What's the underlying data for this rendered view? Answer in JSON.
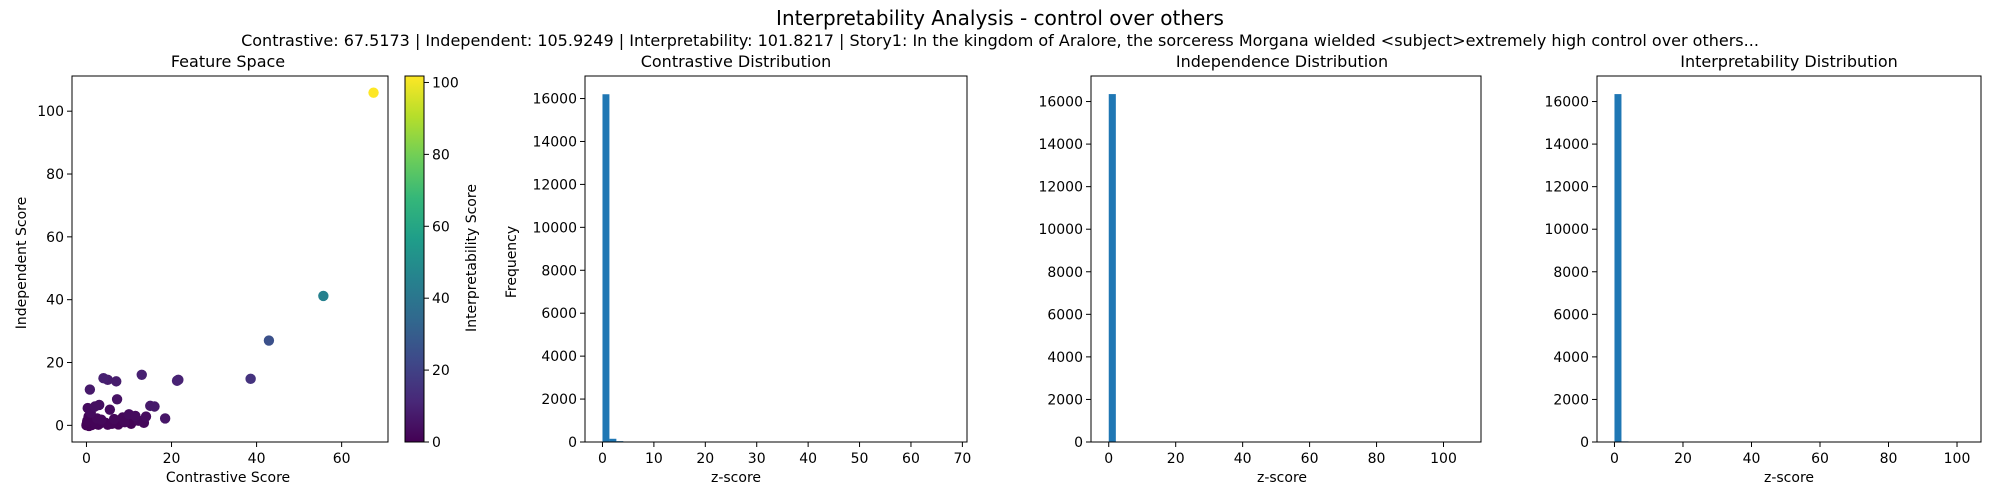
{
  "figure": {
    "title": "Interpretability Analysis - control over others",
    "subtitle": "Contrastive: 67.5173 | Independent: 105.9249 | Interpretability: 101.8217 | Story1: In the kingdom of Aralore, the sorceress Morgana wielded <subject>extremely high control over others..."
  },
  "colors": {
    "bar": "#1f77b4",
    "viridis": [
      "#440154",
      "#482878",
      "#3e4989",
      "#31688e",
      "#26828e",
      "#1f9e89",
      "#35b779",
      "#6ece58",
      "#b5de2b",
      "#fde725"
    ]
  },
  "chart_data": [
    {
      "type": "scatter",
      "title": "Feature Space",
      "xlabel": "Contrastive Score",
      "ylabel": "Independent Score",
      "xlim": [
        -3.4,
        70.9
      ],
      "ylim": [
        -5.3,
        111.2
      ],
      "xticks": [
        0,
        20,
        40,
        60
      ],
      "yticks": [
        0,
        20,
        40,
        60,
        80,
        100
      ],
      "colorbar": {
        "label": "Interpretability Score",
        "range": [
          0,
          101.8
        ],
        "ticks": [
          0,
          20,
          40,
          60,
          80,
          100
        ],
        "colormap": "viridis"
      },
      "points": [
        {
          "x": 67.5,
          "y": 105.9,
          "c": 101.8
        },
        {
          "x": 55.7,
          "y": 41.2,
          "c": 45
        },
        {
          "x": 42.9,
          "y": 27.0,
          "c": 25
        },
        {
          "x": 38.6,
          "y": 14.8,
          "c": 15
        },
        {
          "x": 21.6,
          "y": 14.5,
          "c": 10
        },
        {
          "x": 21.3,
          "y": 14.2,
          "c": 10
        },
        {
          "x": 13.0,
          "y": 16.1,
          "c": 9
        },
        {
          "x": 15.0,
          "y": 6.2,
          "c": 7
        },
        {
          "x": 16.0,
          "y": 6.0,
          "c": 7
        },
        {
          "x": 18.5,
          "y": 2.2,
          "c": 6
        },
        {
          "x": 4.0,
          "y": 15.0,
          "c": 9
        },
        {
          "x": 5.0,
          "y": 14.5,
          "c": 8
        },
        {
          "x": 7.0,
          "y": 14.0,
          "c": 8
        },
        {
          "x": 0.8,
          "y": 11.4,
          "c": 7
        },
        {
          "x": 7.2,
          "y": 8.3,
          "c": 5
        },
        {
          "x": 3.0,
          "y": 6.5,
          "c": 4
        },
        {
          "x": 2.0,
          "y": 6.0,
          "c": 4
        },
        {
          "x": 0.3,
          "y": 5.5,
          "c": 3
        },
        {
          "x": 5.5,
          "y": 5.0,
          "c": 3
        },
        {
          "x": 1.0,
          "y": 4.0,
          "c": 3
        },
        {
          "x": 10.0,
          "y": 3.5,
          "c": 3
        },
        {
          "x": 11.5,
          "y": 3.0,
          "c": 3
        },
        {
          "x": 14.0,
          "y": 2.8,
          "c": 3
        },
        {
          "x": 8.5,
          "y": 2.5,
          "c": 2
        },
        {
          "x": 6.5,
          "y": 2.0,
          "c": 2
        },
        {
          "x": 12.2,
          "y": 1.5,
          "c": 2
        },
        {
          "x": 2.5,
          "y": 2.2,
          "c": 2
        },
        {
          "x": 3.5,
          "y": 1.8,
          "c": 2
        },
        {
          "x": 9.0,
          "y": 1.0,
          "c": 2
        },
        {
          "x": 13.5,
          "y": 0.8,
          "c": 2
        },
        {
          "x": 0.5,
          "y": 2.8,
          "c": 1
        },
        {
          "x": 1.5,
          "y": 1.2,
          "c": 1
        },
        {
          "x": 0.2,
          "y": 1.5,
          "c": 1
        },
        {
          "x": 4.5,
          "y": 0.8,
          "c": 1
        },
        {
          "x": 6.0,
          "y": 0.5,
          "c": 1
        },
        {
          "x": 2.2,
          "y": 0.5,
          "c": 1
        },
        {
          "x": 0.1,
          "y": 0.6,
          "c": 0.5
        },
        {
          "x": 0.4,
          "y": 0.2,
          "c": 0.5
        },
        {
          "x": 0.8,
          "y": 0.3,
          "c": 0.5
        },
        {
          "x": 1.2,
          "y": 0.1,
          "c": 0.5
        },
        {
          "x": 1.8,
          "y": 0.4,
          "c": 0.5
        },
        {
          "x": 0.0,
          "y": 0.0,
          "c": 0.3
        },
        {
          "x": 0.3,
          "y": 0.9,
          "c": 0.5
        },
        {
          "x": 0.7,
          "y": 1.1,
          "c": 0.5
        },
        {
          "x": 2.8,
          "y": 0.2,
          "c": 0.5
        },
        {
          "x": 3.2,
          "y": 0.6,
          "c": 0.5
        },
        {
          "x": 5.0,
          "y": 0.2,
          "c": 0.5
        },
        {
          "x": 7.5,
          "y": 0.3,
          "c": 0.5
        },
        {
          "x": 10.5,
          "y": 0.5,
          "c": 0.7
        },
        {
          "x": 0.6,
          "y": -0.2,
          "c": 0.3
        }
      ]
    },
    {
      "type": "bar",
      "title": "Contrastive Distribution",
      "xlabel": "z-score",
      "ylabel": "Frequency",
      "xlim": [
        -3.4,
        70.9
      ],
      "ylim": [
        0,
        17050
      ],
      "xticks": [
        0,
        10,
        20,
        30,
        40,
        50,
        60,
        70
      ],
      "yticks": [
        0,
        2000,
        4000,
        6000,
        8000,
        10000,
        12000,
        14000,
        16000
      ],
      "bin_width": 1.35,
      "bins": [
        {
          "x": 0,
          "count": 16200
        },
        {
          "x": 1.35,
          "count": 150
        },
        {
          "x": 2.7,
          "count": 40
        },
        {
          "x": 4.05,
          "count": 12
        }
      ]
    },
    {
      "type": "bar",
      "title": "Independence Distribution",
      "xlabel": "z-score",
      "ylabel": "",
      "xlim": [
        -5.3,
        111.2
      ],
      "ylim": [
        0,
        17200
      ],
      "xticks": [
        0,
        20,
        40,
        60,
        80,
        100
      ],
      "yticks": [
        0,
        2000,
        4000,
        6000,
        8000,
        10000,
        12000,
        14000,
        16000
      ],
      "bin_width": 2.12,
      "bins": [
        {
          "x": 0,
          "count": 16350
        },
        {
          "x": 2.12,
          "count": 20
        }
      ]
    },
    {
      "type": "bar",
      "title": "Interpretability Distribution",
      "xlabel": "z-score",
      "ylabel": "",
      "xlim": [
        -5.1,
        107
      ],
      "ylim": [
        0,
        17200
      ],
      "xticks": [
        0,
        20,
        40,
        60,
        80,
        100
      ],
      "yticks": [
        0,
        2000,
        4000,
        6000,
        8000,
        10000,
        12000,
        14000,
        16000
      ],
      "bin_width": 2.04,
      "bins": [
        {
          "x": 0,
          "count": 16350
        },
        {
          "x": 2.04,
          "count": 30
        }
      ]
    }
  ]
}
